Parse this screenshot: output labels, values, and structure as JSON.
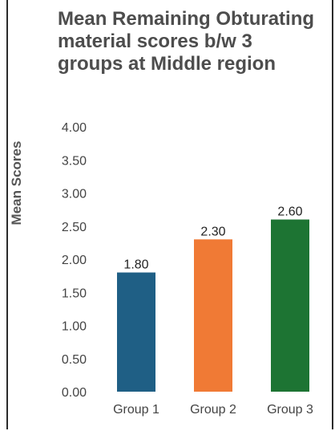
{
  "chart_data": {
    "type": "bar",
    "title": "Mean Remaining Obturating material scores b/w 3 groups at Middle region",
    "xlabel": "",
    "ylabel": "Mean Scores",
    "categories": [
      "Group 1",
      "Group 2",
      "Group 3"
    ],
    "values": [
      1.8,
      2.3,
      2.6
    ],
    "value_labels": [
      "1.80",
      "2.30",
      "2.60"
    ],
    "ylim": [
      0,
      4
    ],
    "yticks": [
      "0.00",
      "0.50",
      "1.00",
      "1.50",
      "2.00",
      "2.50",
      "3.00",
      "3.50",
      "4.00"
    ],
    "colors": [
      "#1f5f85",
      "#f07a35",
      "#1d7433"
    ],
    "grid": false,
    "legend": "none"
  }
}
